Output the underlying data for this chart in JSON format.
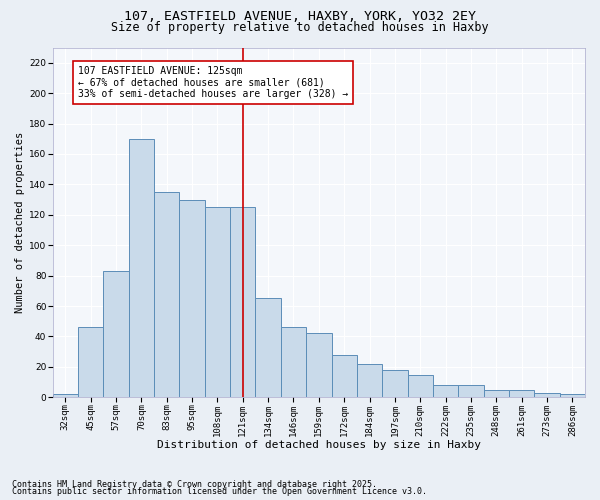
{
  "title": "107, EASTFIELD AVENUE, HAXBY, YORK, YO32 2EY",
  "subtitle": "Size of property relative to detached houses in Haxby",
  "xlabel": "Distribution of detached houses by size in Haxby",
  "ylabel": "Number of detached properties",
  "categories": [
    "32sqm",
    "45sqm",
    "57sqm",
    "70sqm",
    "83sqm",
    "95sqm",
    "108sqm",
    "121sqm",
    "134sqm",
    "146sqm",
    "159sqm",
    "172sqm",
    "184sqm",
    "197sqm",
    "210sqm",
    "222sqm",
    "235sqm",
    "248sqm",
    "261sqm",
    "273sqm",
    "286sqm"
  ],
  "values": [
    2,
    46,
    83,
    170,
    135,
    130,
    125,
    125,
    65,
    46,
    42,
    28,
    22,
    18,
    15,
    8,
    8,
    5,
    5,
    3,
    2
  ],
  "bar_color": "#c9daea",
  "bar_edge_color": "#5b8db8",
  "vline_index": 7,
  "vline_color": "#cc0000",
  "annotation_text": "107 EASTFIELD AVENUE: 125sqm\n← 67% of detached houses are smaller (681)\n33% of semi-detached houses are larger (328) →",
  "annotation_box_color": "#ffffff",
  "annotation_box_edge_color": "#cc0000",
  "ylim": [
    0,
    230
  ],
  "yticks": [
    0,
    20,
    40,
    60,
    80,
    100,
    120,
    140,
    160,
    180,
    200,
    220
  ],
  "bg_color": "#eaeff5",
  "plot_bg_color": "#f4f7fb",
  "footer1": "Contains HM Land Registry data © Crown copyright and database right 2025.",
  "footer2": "Contains public sector information licensed under the Open Government Licence v3.0.",
  "title_fontsize": 9.5,
  "subtitle_fontsize": 8.5,
  "xlabel_fontsize": 8,
  "ylabel_fontsize": 7.5,
  "tick_fontsize": 6.5,
  "annotation_fontsize": 7,
  "footer_fontsize": 6
}
